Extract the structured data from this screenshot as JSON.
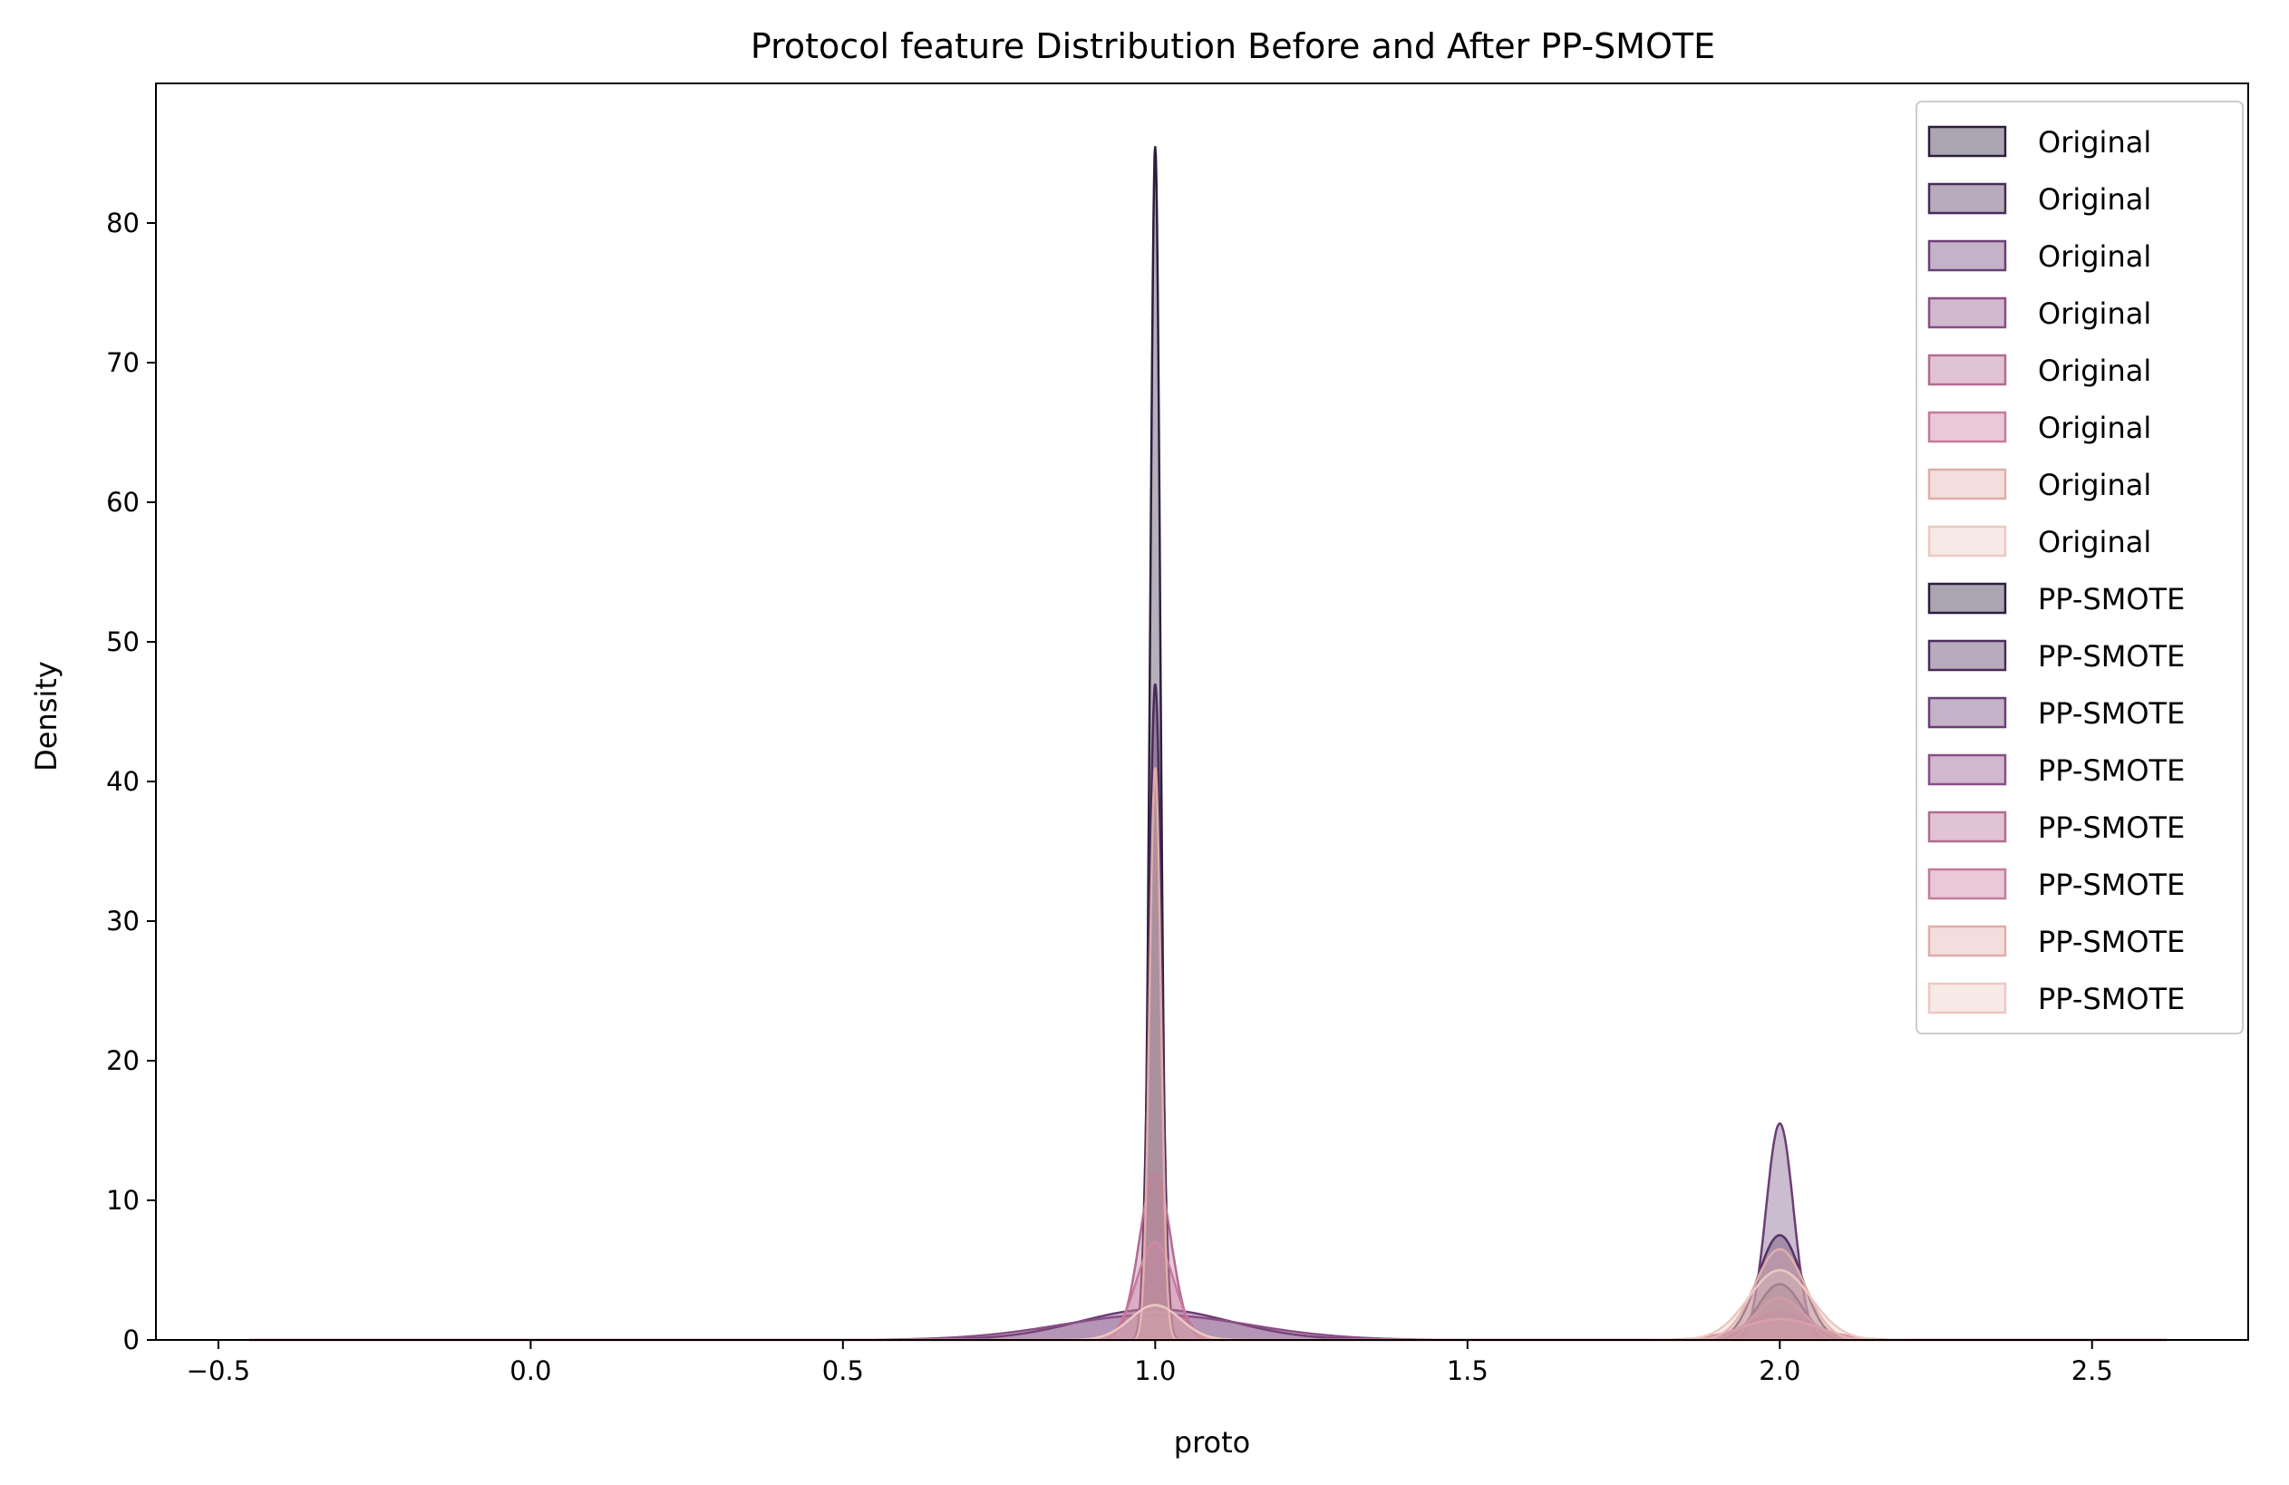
{
  "chart_data": {
    "type": "area",
    "title": "Protocol feature Distribution Before and After PP-SMOTE",
    "xlabel": "proto",
    "ylabel": "Density",
    "xlim": [
      -0.6,
      2.75
    ],
    "ylim": [
      0,
      90
    ],
    "xticks": [
      -0.5,
      0.0,
      0.5,
      1.0,
      1.5,
      2.0,
      2.5
    ],
    "xtick_labels": [
      "−0.5",
      "0.0",
      "0.5",
      "1.0",
      "1.5",
      "2.0",
      "2.5"
    ],
    "yticks": [
      0,
      10,
      20,
      30,
      40,
      50,
      60,
      70,
      80
    ],
    "ytick_labels": [
      "0",
      "10",
      "20",
      "30",
      "40",
      "50",
      "60",
      "70",
      "80"
    ],
    "grid": false,
    "legend_position": "top-right",
    "legend": [
      {
        "label": "Original",
        "color": "#2d1e3e"
      },
      {
        "label": "Original",
        "color": "#4a2c5a"
      },
      {
        "label": "Original",
        "color": "#6b3e75"
      },
      {
        "label": "Original",
        "color": "#8a4d84"
      },
      {
        "label": "Original",
        "color": "#b36b91"
      },
      {
        "label": "Original",
        "color": "#c7799c"
      },
      {
        "label": "Original",
        "color": "#e0aca9"
      },
      {
        "label": "Original",
        "color": "#ebc9c1"
      },
      {
        "label": "PP-SMOTE",
        "color": "#2d1e3e"
      },
      {
        "label": "PP-SMOTE",
        "color": "#4a2c5a"
      },
      {
        "label": "PP-SMOTE",
        "color": "#6b3e75"
      },
      {
        "label": "PP-SMOTE",
        "color": "#8a4d84"
      },
      {
        "label": "PP-SMOTE",
        "color": "#b36b91"
      },
      {
        "label": "PP-SMOTE",
        "color": "#c7799c"
      },
      {
        "label": "PP-SMOTE",
        "color": "#e0aca9"
      },
      {
        "label": "PP-SMOTE",
        "color": "#ebc9c1"
      }
    ],
    "series": [
      {
        "color": "#2d1e3e",
        "peaks": [
          {
            "x": 1.0,
            "height": 85.5,
            "width": 0.008
          },
          {
            "x": 2.0,
            "height": 4.0,
            "width": 0.035
          }
        ]
      },
      {
        "color": "#4a2c5a",
        "peaks": [
          {
            "x": 1.0,
            "height": 47.0,
            "width": 0.01
          },
          {
            "x": 2.0,
            "height": 7.5,
            "width": 0.035
          }
        ]
      },
      {
        "color": "#6b3e75",
        "peaks": [
          {
            "x": 1.0,
            "height": 2.2,
            "width": 0.12
          },
          {
            "x": 2.0,
            "height": 15.5,
            "width": 0.022
          }
        ]
      },
      {
        "color": "#8a4d84",
        "peaks": [
          {
            "x": 1.0,
            "height": 1.8,
            "width": 0.15
          },
          {
            "x": 2.0,
            "height": 2.0,
            "width": 0.05
          }
        ]
      },
      {
        "color": "#b36b91",
        "peaks": [
          {
            "x": 1.0,
            "height": 12.0,
            "width": 0.025
          },
          {
            "x": 2.0,
            "height": 3.0,
            "width": 0.04
          }
        ]
      },
      {
        "color": "#c7799c",
        "peaks": [
          {
            "x": 1.0,
            "height": 7.0,
            "width": 0.03
          },
          {
            "x": 2.0,
            "height": 1.5,
            "width": 0.06
          }
        ]
      },
      {
        "color": "#e0aca9",
        "peaks": [
          {
            "x": 1.0,
            "height": 41.0,
            "width": 0.009
          },
          {
            "x": 2.0,
            "height": 6.5,
            "width": 0.04
          }
        ]
      },
      {
        "color": "#ebc9c1",
        "peaks": [
          {
            "x": 1.0,
            "height": 2.5,
            "width": 0.04
          },
          {
            "x": 2.0,
            "height": 5.0,
            "width": 0.05
          }
        ]
      }
    ]
  }
}
